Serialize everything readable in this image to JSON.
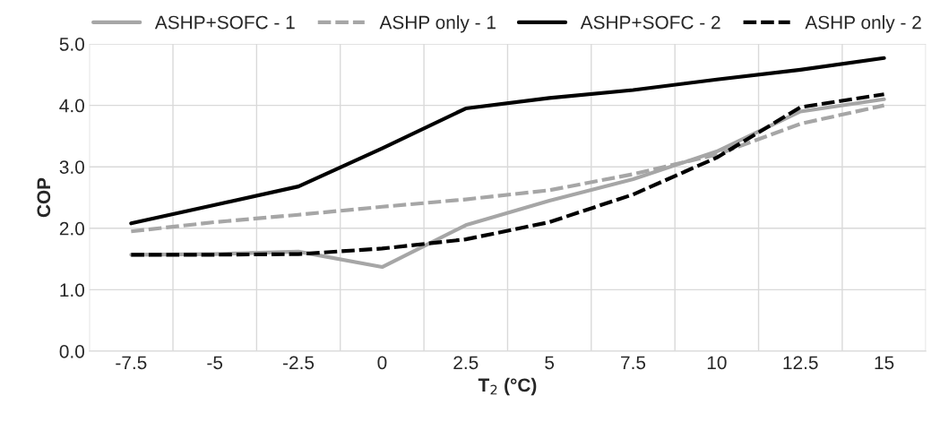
{
  "chart_data": {
    "type": "line",
    "xlabel": "T$_{2}$ (°C)",
    "ylabel": "COP",
    "categories": [
      "-7.5",
      "-5",
      "-2.5",
      "0",
      "2.5",
      "5",
      "7.5",
      "10",
      "12.5",
      "15"
    ],
    "series": [
      {
        "name": "ASHP+SOFC - 1",
        "color": "#a6a6a6",
        "line_style": "solid",
        "values": [
          1.57,
          1.58,
          1.62,
          1.37,
          2.05,
          2.45,
          2.8,
          3.25,
          3.9,
          4.1
        ]
      },
      {
        "name": "ASHP only - 1",
        "color": "#a6a6a6",
        "line_style": "dashed",
        "values": [
          1.95,
          2.1,
          2.22,
          2.35,
          2.47,
          2.62,
          2.88,
          3.2,
          3.7,
          4.0
        ]
      },
      {
        "name": "ASHP+SOFC - 2",
        "color": "#000000",
        "line_style": "solid",
        "values": [
          2.08,
          2.38,
          2.68,
          3.3,
          3.95,
          4.12,
          4.25,
          4.42,
          4.58,
          4.77
        ]
      },
      {
        "name": "ASHP only - 2",
        "color": "#000000",
        "line_style": "dashed",
        "values": [
          1.57,
          1.57,
          1.58,
          1.67,
          1.82,
          2.1,
          2.55,
          3.15,
          3.97,
          4.18
        ]
      }
    ],
    "ylim": [
      0,
      5
    ],
    "yticks": [
      {
        "value": 0,
        "label": "0.0"
      },
      {
        "value": 1,
        "label": "1.0"
      },
      {
        "value": 2,
        "label": "2.0"
      },
      {
        "value": 3,
        "label": "3.0"
      },
      {
        "value": 4,
        "label": "4.0"
      },
      {
        "value": 5,
        "label": "5.0"
      }
    ],
    "grid": true,
    "legend": "top",
    "marker": "none"
  }
}
